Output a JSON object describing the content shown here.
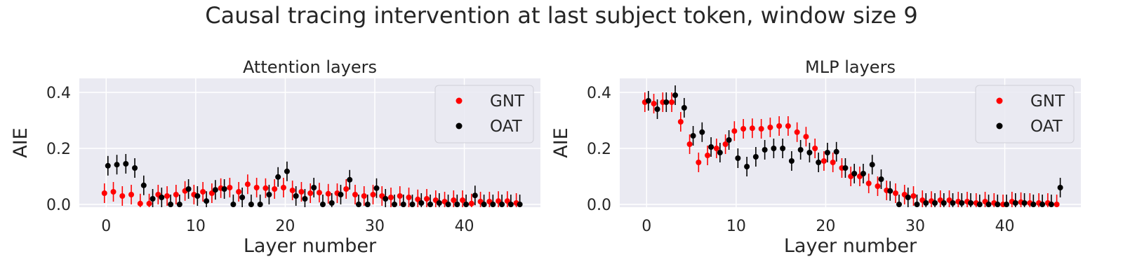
{
  "figure": {
    "suptitle": "Causal tracing intervention at last subject token, window size 9"
  },
  "colors": {
    "panel_bg": "#EAEAF2",
    "grid": "#FFFFFF",
    "GNT": "#FF0000",
    "OAT": "#000000"
  },
  "chart_data": [
    {
      "type": "scatter",
      "title": "Attention layers",
      "xlabel": "Layer number",
      "ylabel": "AIE",
      "xticks": [
        0,
        10,
        20,
        30,
        40
      ],
      "yticks": [
        "0.0",
        "0.2",
        "0.4"
      ],
      "xlim": [
        -3,
        48.5
      ],
      "ylim": [
        -0.01,
        0.45
      ],
      "grid": true,
      "legend": "top-right",
      "errorbars": true,
      "series": [
        {
          "name": "GNT",
          "x": [
            0,
            1,
            2,
            3,
            4,
            5,
            6,
            7,
            8,
            9,
            10,
            11,
            12,
            13,
            14,
            15,
            16,
            17,
            18,
            19,
            20,
            21,
            22,
            23,
            24,
            25,
            26,
            27,
            28,
            29,
            30,
            31,
            32,
            33,
            34,
            35,
            36,
            37,
            38,
            39,
            40,
            41,
            42,
            43,
            44,
            45,
            46
          ],
          "y": [
            0.04,
            0.045,
            0.03,
            0.035,
            0.003,
            0.003,
            0.035,
            0.03,
            0.035,
            0.048,
            0.035,
            0.045,
            0.04,
            0.058,
            0.06,
            0.045,
            0.072,
            0.06,
            0.058,
            0.055,
            0.06,
            0.05,
            0.045,
            0.04,
            0.042,
            0.038,
            0.04,
            0.055,
            0.035,
            0.03,
            0.035,
            0.03,
            0.025,
            0.03,
            0.025,
            0.018,
            0.02,
            0.015,
            0.01,
            0.015,
            0.015,
            0.003,
            0.01,
            0.01,
            0.012,
            0.012,
            0.005
          ]
        },
        {
          "name": "OAT",
          "x": [
            0,
            1,
            2,
            3,
            4,
            5,
            6,
            7,
            8,
            9,
            10,
            11,
            12,
            13,
            14,
            15,
            16,
            17,
            18,
            19,
            20,
            21,
            22,
            23,
            24,
            25,
            26,
            27,
            28,
            29,
            30,
            31,
            32,
            33,
            34,
            35,
            36,
            37,
            38,
            39,
            40,
            41,
            42,
            43,
            44,
            45,
            46
          ],
          "y": [
            0.138,
            0.142,
            0.145,
            0.13,
            0.068,
            0.02,
            0.025,
            0.0,
            0.0,
            0.055,
            0.03,
            0.012,
            0.052,
            0.055,
            0.0,
            0.025,
            0.0,
            0.0,
            0.035,
            0.098,
            0.118,
            0.03,
            0.02,
            0.06,
            0.0,
            0.005,
            0.035,
            0.088,
            0.0,
            0.0,
            0.058,
            0.02,
            0.0,
            0.0,
            0.0,
            0.005,
            0.0,
            0.005,
            0.0,
            0.0,
            0.0,
            0.032,
            0.0,
            0.0,
            0.0,
            0.0,
            0.0
          ]
        }
      ]
    },
    {
      "type": "scatter",
      "title": "MLP layers",
      "xlabel": "Layer number",
      "ylabel": "AIE",
      "xticks": [
        0,
        10,
        20,
        30,
        40
      ],
      "yticks": [
        "0.0",
        "0.2",
        "0.4"
      ],
      "xlim": [
        -3,
        48.5
      ],
      "ylim": [
        -0.01,
        0.45
      ],
      "grid": true,
      "legend": "top-right",
      "errorbars": true,
      "series": [
        {
          "name": "GNT",
          "x": [
            0,
            1,
            2,
            3,
            4,
            5,
            6,
            7,
            8,
            9,
            10,
            11,
            12,
            13,
            14,
            15,
            16,
            17,
            18,
            19,
            20,
            21,
            22,
            23,
            24,
            25,
            26,
            27,
            28,
            29,
            30,
            31,
            32,
            33,
            34,
            35,
            36,
            37,
            38,
            39,
            40,
            41,
            42,
            43,
            44,
            45,
            46
          ],
          "y": [
            0.365,
            0.36,
            0.365,
            0.365,
            0.295,
            0.215,
            0.15,
            0.175,
            0.2,
            0.215,
            0.262,
            0.27,
            0.272,
            0.27,
            0.275,
            0.28,
            0.28,
            0.258,
            0.242,
            0.2,
            0.155,
            0.15,
            0.13,
            0.1,
            0.1,
            0.075,
            0.065,
            0.05,
            0.04,
            0.035,
            0.03,
            0.015,
            0.012,
            0.015,
            0.015,
            0.01,
            0.01,
            0.005,
            0.01,
            0.005,
            0.0,
            0.01,
            0.008,
            0.005,
            0.005,
            0.005,
            0.0
          ]
        },
        {
          "name": "OAT",
          "x": [
            0,
            1,
            2,
            3,
            4,
            5,
            6,
            7,
            8,
            9,
            10,
            11,
            12,
            13,
            14,
            15,
            16,
            17,
            18,
            19,
            20,
            21,
            22,
            23,
            24,
            25,
            26,
            27,
            28,
            29,
            30,
            31,
            32,
            33,
            34,
            35,
            36,
            37,
            38,
            39,
            40,
            41,
            42,
            43,
            44,
            45,
            46
          ],
          "y": [
            0.37,
            0.34,
            0.365,
            0.39,
            0.345,
            0.245,
            0.258,
            0.205,
            0.185,
            0.23,
            0.165,
            0.135,
            0.17,
            0.195,
            0.2,
            0.2,
            0.155,
            0.195,
            0.185,
            0.15,
            0.185,
            0.188,
            0.13,
            0.11,
            0.11,
            0.142,
            0.09,
            0.048,
            0.0,
            0.025,
            0.0,
            0.005,
            0.005,
            0.005,
            0.005,
            0.005,
            0.005,
            0.0,
            0.0,
            0.0,
            0.0,
            0.005,
            0.005,
            0.0,
            0.0,
            0.0,
            0.06
          ]
        }
      ]
    }
  ]
}
